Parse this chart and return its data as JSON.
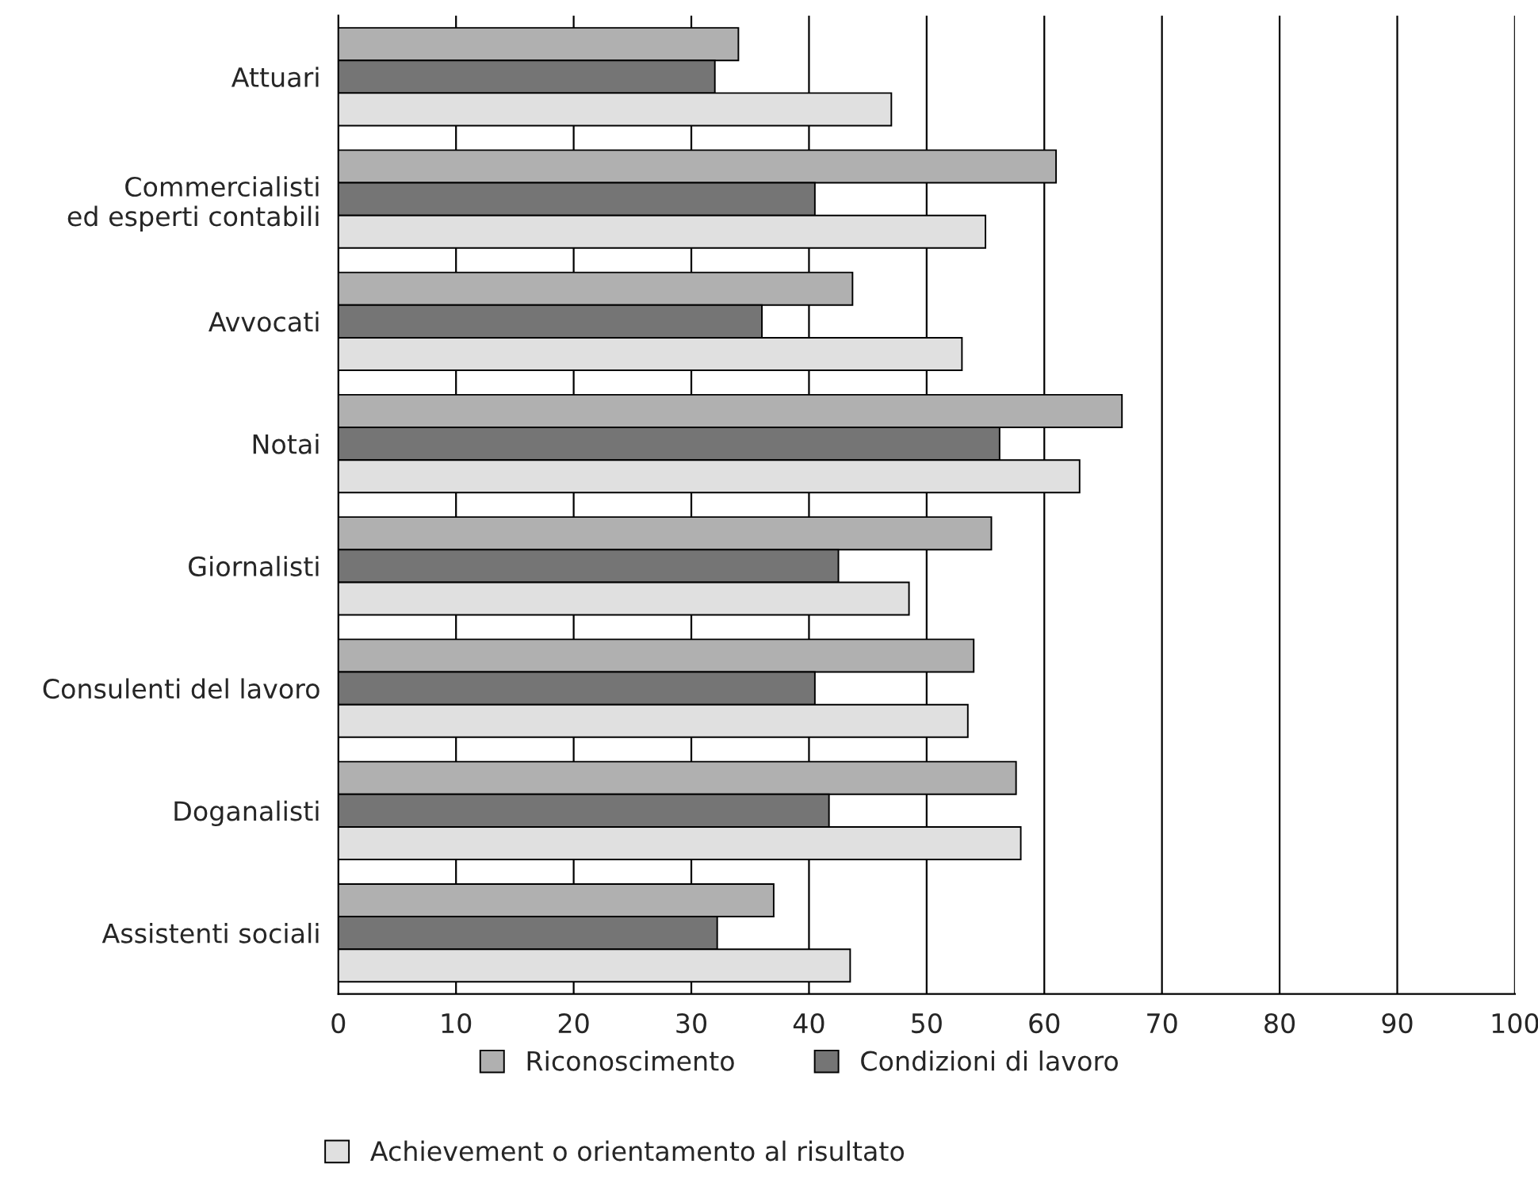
{
  "chart_data": {
    "type": "bar",
    "orientation": "horizontal",
    "categories": [
      "Attuari",
      "Commercialisti\ned esperti contabili",
      "Avvocati",
      "Notai",
      "Giornalisti",
      "Consulenti del lavoro",
      "Doganalisti",
      "Assistenti sociali"
    ],
    "series": [
      {
        "name": "Riconoscimento",
        "color": "#b0b0b0",
        "values": [
          34,
          61,
          43.7,
          66.6,
          55.5,
          54,
          57.6,
          37
        ]
      },
      {
        "name": "Condizioni di lavoro",
        "color": "#757575",
        "values": [
          32,
          40.5,
          36,
          56.2,
          42.5,
          40.5,
          41.7,
          32.2
        ]
      },
      {
        "name": "Achievement o orientamento al risultato",
        "color": "#e0e0e0",
        "values": [
          47,
          55,
          53,
          63,
          48.5,
          53.5,
          58,
          43.5
        ]
      }
    ],
    "xlim": [
      0,
      100
    ],
    "xticks": [
      0,
      10,
      20,
      30,
      40,
      50,
      60,
      70,
      80,
      90,
      100
    ],
    "grid": "x",
    "legend": "bottom"
  }
}
